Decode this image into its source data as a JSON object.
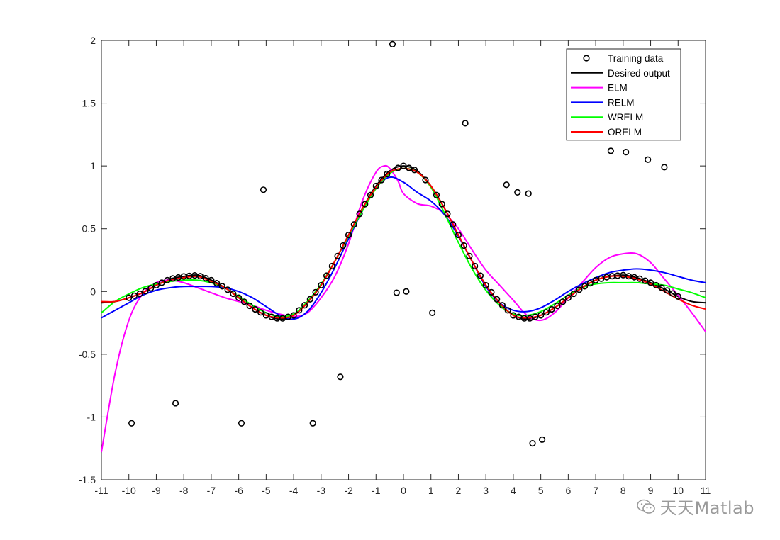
{
  "chart_data": {
    "type": "line",
    "title": "",
    "xlabel": "",
    "ylabel": "",
    "xlim": [
      -11,
      11
    ],
    "ylim": [
      -1.5,
      2
    ],
    "xticks": [
      -11,
      -10,
      -9,
      -8,
      -7,
      -6,
      -5,
      -4,
      -3,
      -2,
      -1,
      0,
      1,
      2,
      3,
      4,
      5,
      6,
      7,
      8,
      9,
      10,
      11
    ],
    "yticks": [
      -1.5,
      -1,
      -0.5,
      0,
      0.5,
      1,
      1.5,
      2
    ],
    "xtick_labels": [
      "-11",
      "-10",
      "-9",
      "-8",
      "-7",
      "-6",
      "-5",
      "-4",
      "-3",
      "-2",
      "-1",
      "0",
      "1",
      "2",
      "3",
      "4",
      "5",
      "6",
      "7",
      "8",
      "9",
      "10",
      "11"
    ],
    "ytick_labels": [
      "-1.5",
      "-1",
      "-0.5",
      "0",
      "0.5",
      "1",
      "1.5",
      "2"
    ],
    "grid": false,
    "legend_position": "top-right",
    "legend": [
      "Training data",
      "Desired output",
      "ELM",
      "RELM",
      "WRELM",
      "ORELM"
    ],
    "colors": {
      "training_data": "#000000",
      "desired_output": "#000000",
      "elm": "#ff00ff",
      "relm": "#0000ff",
      "wrelm": "#00ff00",
      "orelm": "#ff0000"
    },
    "outliers": [
      {
        "x": -9.9,
        "y": -1.05
      },
      {
        "x": -8.3,
        "y": -0.89
      },
      {
        "x": -5.9,
        "y": -1.05
      },
      {
        "x": -5.1,
        "y": 0.81
      },
      {
        "x": -3.3,
        "y": -1.05
      },
      {
        "x": -2.3,
        "y": -0.68
      },
      {
        "x": -0.4,
        "y": 1.97
      },
      {
        "x": -0.25,
        "y": -0.01
      },
      {
        "x": 0.1,
        "y": 0.0
      },
      {
        "x": 1.05,
        "y": -0.17
      },
      {
        "x": 2.25,
        "y": 1.34
      },
      {
        "x": 3.75,
        "y": 0.85
      },
      {
        "x": 4.15,
        "y": 0.79
      },
      {
        "x": 4.55,
        "y": 0.78
      },
      {
        "x": 4.7,
        "y": -1.21
      },
      {
        "x": 5.05,
        "y": -1.18
      },
      {
        "x": 7.55,
        "y": 1.12
      },
      {
        "x": 8.1,
        "y": 1.11
      },
      {
        "x": 8.9,
        "y": 1.05
      },
      {
        "x": 9.5,
        "y": 0.99
      }
    ],
    "training_on_curve_x": [
      -10.0,
      -9.8,
      -9.6,
      -9.4,
      -9.2,
      -9.0,
      -8.8,
      -8.6,
      -8.4,
      -8.2,
      -8.0,
      -7.8,
      -7.6,
      -7.4,
      -7.2,
      -7.0,
      -6.8,
      -6.6,
      -6.4,
      -6.2,
      -6.0,
      -5.8,
      -5.6,
      -5.4,
      -5.2,
      -5.0,
      -4.8,
      -4.6,
      -4.4,
      -4.2,
      -4.0,
      -3.8,
      -3.6,
      -3.4,
      -3.2,
      -3.0,
      -2.8,
      -2.6,
      -2.4,
      -2.2,
      -2.0,
      -1.8,
      -1.6,
      -1.4,
      -1.2,
      -1.0,
      -0.8,
      -0.6,
      -0.2,
      0.0,
      0.2,
      0.4,
      0.8,
      1.2,
      1.4,
      1.6,
      1.8,
      2.0,
      2.2,
      2.4,
      2.6,
      2.8,
      3.0,
      3.2,
      3.4,
      3.6,
      3.8,
      4.0,
      4.2,
      4.4,
      4.6,
      4.8,
      5.0,
      5.2,
      5.4,
      5.6,
      5.8,
      6.0,
      6.2,
      6.4,
      6.6,
      6.8,
      7.0,
      7.2,
      7.4,
      7.6,
      7.8,
      8.0,
      8.2,
      8.4,
      8.6,
      8.8,
      9.0,
      9.2,
      9.4,
      9.6,
      9.8,
      10.0
    ],
    "series": [
      {
        "name": "Desired output",
        "key": "desired",
        "x": [
          -11,
          -10.5,
          -10,
          -9.5,
          -9,
          -8.5,
          -8,
          -7.5,
          -7,
          -6.5,
          -6,
          -5.5,
          -5,
          -4.5,
          -4,
          -3.5,
          -3,
          -2.5,
          -2,
          -1.5,
          -1,
          -0.5,
          0,
          0.5,
          1,
          1.5,
          2,
          2.5,
          3,
          3.5,
          4,
          4.5,
          5,
          5.5,
          6,
          6.5,
          7,
          7.5,
          8,
          8.5,
          9,
          9.5,
          10,
          10.5,
          11
        ],
        "y": [
          -0.09,
          -0.08,
          -0.05,
          -0.01,
          0.05,
          0.1,
          0.12,
          0.13,
          0.09,
          0.03,
          -0.05,
          -0.13,
          -0.19,
          -0.22,
          -0.19,
          -0.09,
          0.05,
          0.24,
          0.45,
          0.66,
          0.84,
          0.96,
          1.0,
          0.96,
          0.84,
          0.66,
          0.45,
          0.24,
          0.05,
          -0.09,
          -0.19,
          -0.22,
          -0.19,
          -0.13,
          -0.05,
          0.03,
          0.09,
          0.12,
          0.13,
          0.11,
          0.07,
          0.02,
          -0.04,
          -0.08,
          -0.09
        ]
      },
      {
        "name": "ELM",
        "key": "elm",
        "x": [
          -11,
          -10.5,
          -10,
          -9.5,
          -9,
          -8.5,
          -8,
          -7.5,
          -7,
          -6.5,
          -6,
          -5.5,
          -5,
          -4.5,
          -4,
          -3.5,
          -3,
          -2.5,
          -2,
          -1.5,
          -1,
          -0.7,
          -0.5,
          -0.2,
          0,
          0.5,
          1,
          1.5,
          2,
          2.5,
          3,
          3.5,
          4,
          4.5,
          5,
          5.5,
          6,
          6.5,
          7,
          7.5,
          8,
          8.5,
          9,
          9.5,
          10,
          10.5,
          11
        ],
        "y": [
          -1.28,
          -0.65,
          -0.23,
          -0.02,
          0.07,
          0.09,
          0.07,
          0.03,
          -0.01,
          -0.05,
          -0.08,
          -0.11,
          -0.15,
          -0.18,
          -0.2,
          -0.17,
          -0.05,
          0.12,
          0.38,
          0.72,
          0.95,
          1.0,
          0.98,
          0.88,
          0.78,
          0.7,
          0.68,
          0.62,
          0.5,
          0.33,
          0.17,
          0.05,
          -0.07,
          -0.19,
          -0.23,
          -0.17,
          -0.05,
          0.07,
          0.19,
          0.27,
          0.3,
          0.3,
          0.23,
          0.1,
          -0.03,
          -0.17,
          -0.32
        ]
      },
      {
        "name": "RELM",
        "key": "relm",
        "x": [
          -11,
          -10.5,
          -10,
          -9.5,
          -9,
          -8.5,
          -8,
          -7.5,
          -7,
          -6.5,
          -6,
          -5.5,
          -5,
          -4.5,
          -4,
          -3.5,
          -3,
          -2.5,
          -2,
          -1.5,
          -1,
          -0.5,
          0,
          0.5,
          1,
          1.5,
          2,
          2.5,
          3,
          3.5,
          4,
          4.5,
          5,
          5.5,
          6,
          6.5,
          7,
          7.5,
          8,
          8.5,
          9,
          9.5,
          10,
          10.5,
          11
        ],
        "y": [
          -0.21,
          -0.15,
          -0.09,
          -0.03,
          0.01,
          0.03,
          0.04,
          0.04,
          0.04,
          0.03,
          0.0,
          -0.05,
          -0.12,
          -0.19,
          -0.22,
          -0.16,
          -0.01,
          0.19,
          0.42,
          0.64,
          0.83,
          0.91,
          0.87,
          0.79,
          0.72,
          0.61,
          0.44,
          0.24,
          0.04,
          -0.09,
          -0.15,
          -0.16,
          -0.13,
          -0.07,
          0.0,
          0.06,
          0.11,
          0.15,
          0.17,
          0.18,
          0.17,
          0.15,
          0.12,
          0.09,
          0.07
        ]
      },
      {
        "name": "WRELM",
        "key": "wrelm",
        "x": [
          -11,
          -10.5,
          -10,
          -9.5,
          -9,
          -8.5,
          -8,
          -7.5,
          -7,
          -6.5,
          -6,
          -5.5,
          -5,
          -4.5,
          -4,
          -3.5,
          -3,
          -2.5,
          -2,
          -1.5,
          -1,
          -0.5,
          0,
          0.5,
          1,
          1.5,
          2,
          2.5,
          3,
          3.5,
          4,
          4.5,
          5,
          5.5,
          6,
          6.5,
          7,
          7.5,
          8,
          8.5,
          9,
          9.5,
          10,
          10.5,
          11
        ],
        "y": [
          -0.17,
          -0.08,
          -0.02,
          0.03,
          0.06,
          0.08,
          0.09,
          0.09,
          0.07,
          0.03,
          -0.04,
          -0.11,
          -0.17,
          -0.2,
          -0.18,
          -0.08,
          0.06,
          0.24,
          0.44,
          0.64,
          0.82,
          0.94,
          0.98,
          0.95,
          0.83,
          0.62,
          0.39,
          0.18,
          0.01,
          -0.11,
          -0.18,
          -0.19,
          -0.16,
          -0.1,
          -0.03,
          0.03,
          0.06,
          0.07,
          0.07,
          0.07,
          0.06,
          0.05,
          0.02,
          -0.01,
          -0.05
        ]
      },
      {
        "name": "ORELM",
        "key": "orelm",
        "x": [
          -11,
          -10.5,
          -10,
          -9.5,
          -9,
          -8.5,
          -8,
          -7.5,
          -7,
          -6.5,
          -6,
          -5.5,
          -5,
          -4.5,
          -4,
          -3.5,
          -3,
          -2.5,
          -2,
          -1.5,
          -1,
          -0.5,
          0,
          0.5,
          1,
          1.5,
          2,
          2.5,
          3,
          3.5,
          4,
          4.5,
          5,
          5.5,
          6,
          6.5,
          7,
          7.5,
          8,
          8.5,
          9,
          9.5,
          10,
          10.5,
          11
        ],
        "y": [
          -0.08,
          -0.08,
          -0.05,
          -0.01,
          0.05,
          0.09,
          0.11,
          0.12,
          0.08,
          0.03,
          -0.05,
          -0.13,
          -0.19,
          -0.21,
          -0.19,
          -0.09,
          0.05,
          0.24,
          0.45,
          0.66,
          0.83,
          0.95,
          0.98,
          0.95,
          0.84,
          0.66,
          0.45,
          0.24,
          0.05,
          -0.09,
          -0.19,
          -0.21,
          -0.19,
          -0.13,
          -0.05,
          0.03,
          0.09,
          0.12,
          0.12,
          0.1,
          0.06,
          0.0,
          -0.06,
          -0.11,
          -0.14
        ]
      }
    ]
  },
  "watermark": {
    "text": "天天Matlab",
    "icon": "wechat-icon"
  }
}
